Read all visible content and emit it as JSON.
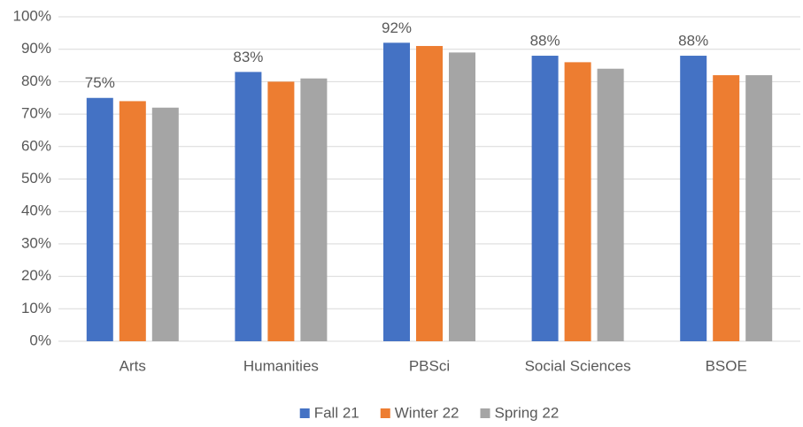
{
  "chart_data": {
    "type": "bar",
    "categories": [
      "Arts",
      "Humanities",
      "PBSci",
      "Social Sciences",
      "BSOE"
    ],
    "series": [
      {
        "name": "Fall 21",
        "color": "#4472c4",
        "values": [
          75,
          83,
          92,
          88,
          88
        ],
        "value_labels": [
          "75%",
          "83%",
          "92%",
          "88%",
          "88%"
        ]
      },
      {
        "name": "Winter 22",
        "color": "#ed7d31",
        "values": [
          74,
          80,
          91,
          86,
          82
        ]
      },
      {
        "name": "Spring 22",
        "color": "#a5a5a5",
        "values": [
          72,
          81,
          89,
          84,
          82
        ]
      }
    ],
    "ylim": [
      0,
      100
    ],
    "yticks": [
      {
        "value": 0,
        "label": "0%"
      },
      {
        "value": 10,
        "label": "10%"
      },
      {
        "value": 20,
        "label": "20%"
      },
      {
        "value": 30,
        "label": "30%"
      },
      {
        "value": 40,
        "label": "40%"
      },
      {
        "value": 50,
        "label": "50%"
      },
      {
        "value": 60,
        "label": "60%"
      },
      {
        "value": 70,
        "label": "70%"
      },
      {
        "value": 80,
        "label": "80%"
      },
      {
        "value": 90,
        "label": "90%"
      },
      {
        "value": 100,
        "label": "100%"
      }
    ],
    "grid": true,
    "legend": "bottom"
  }
}
